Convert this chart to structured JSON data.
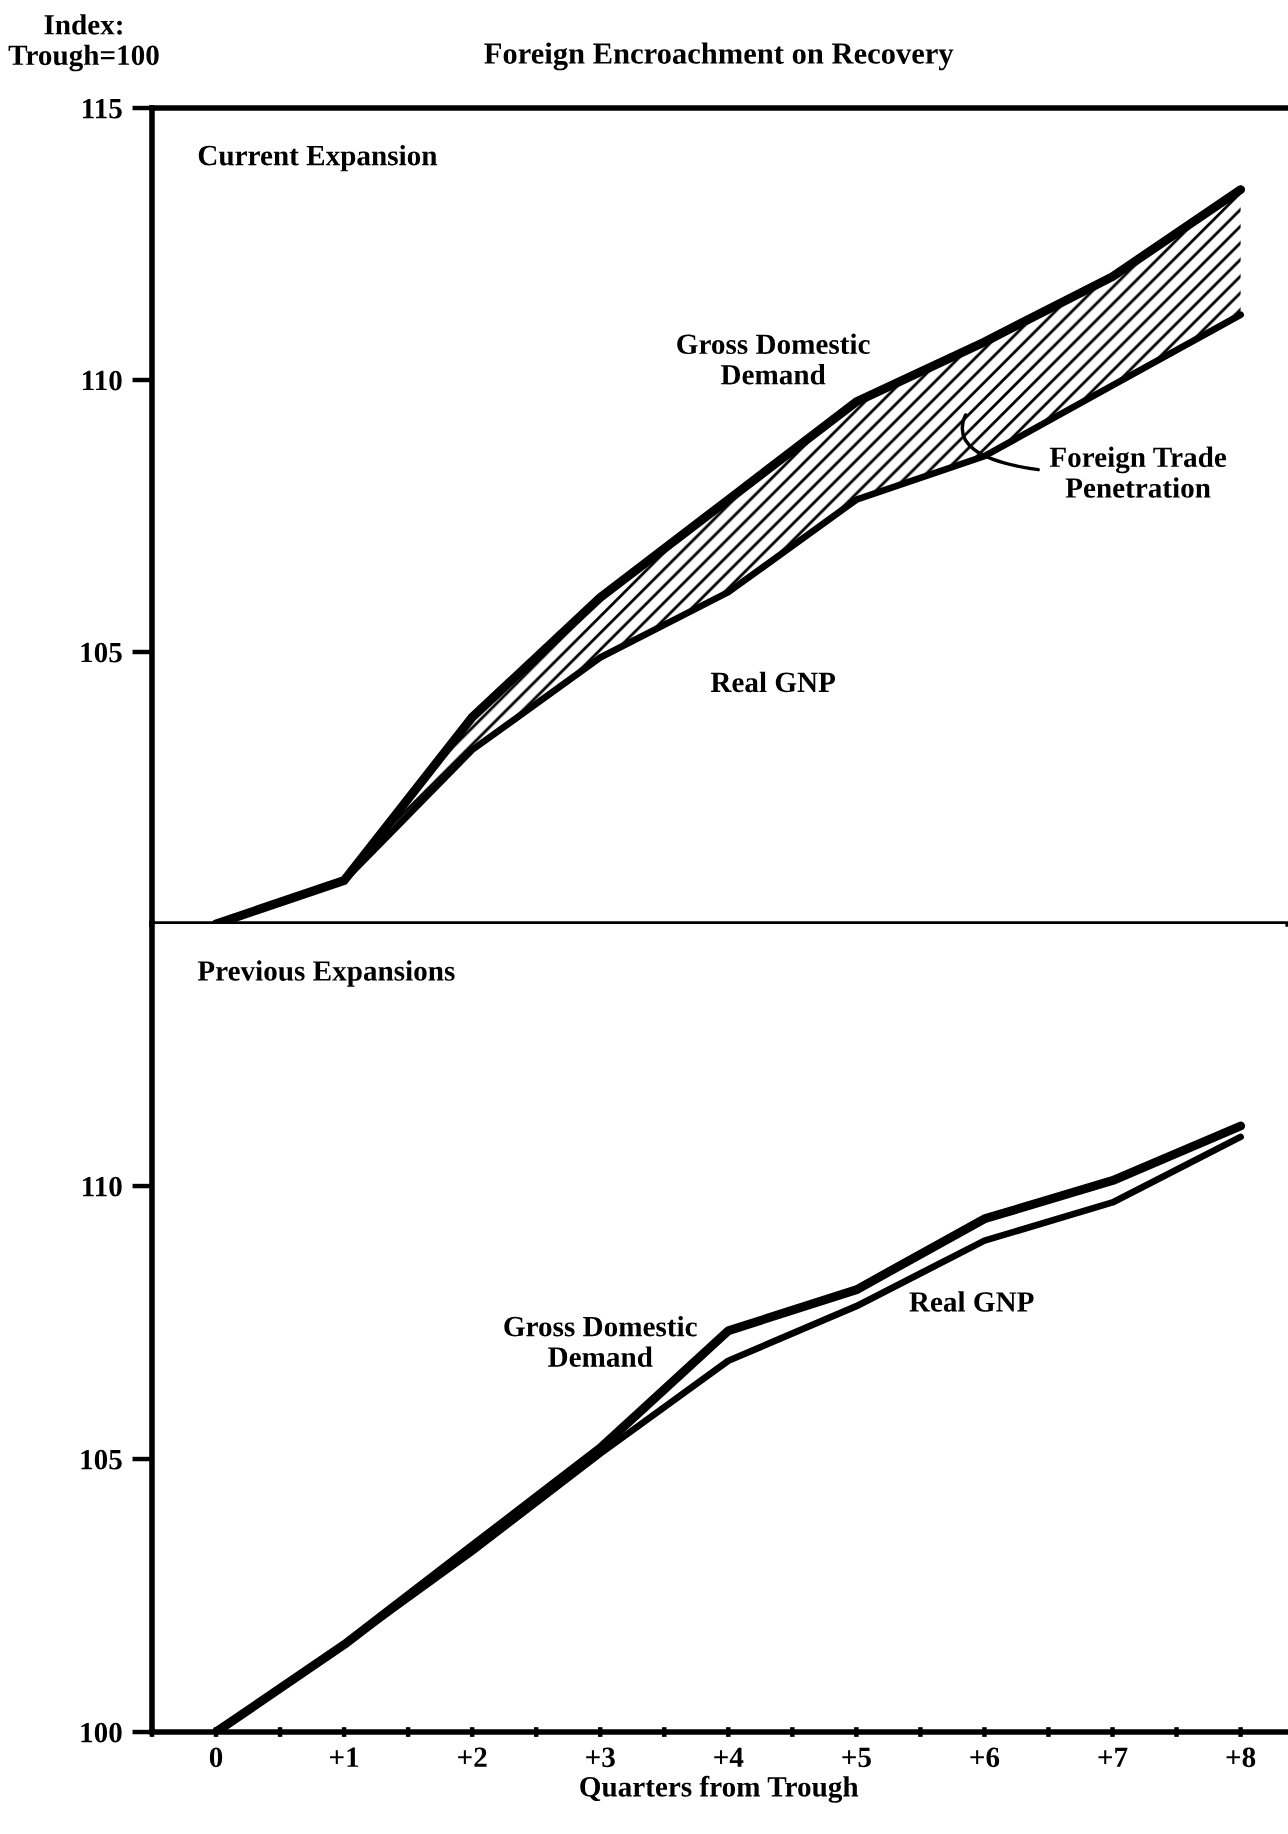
{
  "chart_data": [
    {
      "type": "line",
      "title": "Foreign Encroachment on Recovery",
      "subtitle": "Current Expansion",
      "ylabel": "Index:\nTrough=100",
      "x": [
        0,
        1,
        2,
        3,
        4,
        5,
        6,
        7,
        8
      ],
      "series": [
        {
          "name": "Gross Domestic Demand",
          "color": "#000000",
          "values": [
            100.0,
            100.8,
            103.8,
            106.0,
            107.8,
            109.6,
            110.7,
            111.9,
            113.5
          ],
          "lower": [
            100.0,
            100.8,
            103.2,
            104.9,
            106.1,
            107.8,
            108.6,
            109.9,
            111.2
          ],
          "upper": [
            100.0,
            100.8,
            103.8,
            106.0,
            107.8,
            109.6,
            110.7,
            111.9,
            113.5
          ]
        },
        {
          "name": "Real GNP",
          "color": "#000000",
          "values": [
            100.0,
            100.8,
            103.2,
            104.9,
            106.1,
            107.8,
            108.6,
            109.9,
            111.2
          ]
        }
      ],
      "annotations": [
        "Foreign Trade\nPenetration"
      ],
      "xlim": [
        -0.5,
        8.35
      ],
      "ylim": [
        100,
        115
      ],
      "yticks": [
        105,
        110,
        115
      ],
      "tick_labels": "y",
      "grid": false,
      "legend": false,
      "marker": "none",
      "line_style": "solid"
    },
    {
      "type": "line",
      "subtitle": "Previous Expansions",
      "xlabel": "Quarters from Trough",
      "x": [
        0,
        1,
        2,
        3,
        4,
        5,
        6,
        7,
        8
      ],
      "series": [
        {
          "name": "Gross Domestic Demand",
          "color": "#000000",
          "values": [
            100.0,
            101.6,
            103.4,
            105.2,
            107.35,
            108.1,
            109.4,
            110.1,
            111.1
          ]
        },
        {
          "name": "Real GNP",
          "color": "#000000",
          "values": [
            100.0,
            101.6,
            103.3,
            105.1,
            106.8,
            107.8,
            109.0,
            109.7,
            110.9
          ]
        }
      ],
      "xlim": [
        -0.5,
        8.35
      ],
      "ylim": [
        100,
        114.8
      ],
      "yticks": [
        100,
        105,
        110
      ],
      "xticks": [
        {
          "value": -0.5,
          "label": null
        },
        {
          "value": 0,
          "label": "0"
        },
        {
          "value": 0.5,
          "label": null
        },
        {
          "value": 1,
          "label": "+1"
        },
        {
          "value": 1.5,
          "label": null
        },
        {
          "value": 2,
          "label": "+2"
        },
        {
          "value": 2.5,
          "label": null
        },
        {
          "value": 3,
          "label": "+3"
        },
        {
          "value": 3.5,
          "label": null
        },
        {
          "value": 4,
          "label": "+4"
        },
        {
          "value": 4.5,
          "label": null
        },
        {
          "value": 5,
          "label": "+5"
        },
        {
          "value": 5.5,
          "label": null
        },
        {
          "value": 6,
          "label": "+6"
        },
        {
          "value": 6.5,
          "label": null
        },
        {
          "value": 7,
          "label": "+7"
        },
        {
          "value": 7.5,
          "label": null
        },
        {
          "value": 8,
          "label": "+8"
        }
      ],
      "grid": false,
      "legend": false,
      "marker": "none",
      "line_style": "solid"
    }
  ]
}
